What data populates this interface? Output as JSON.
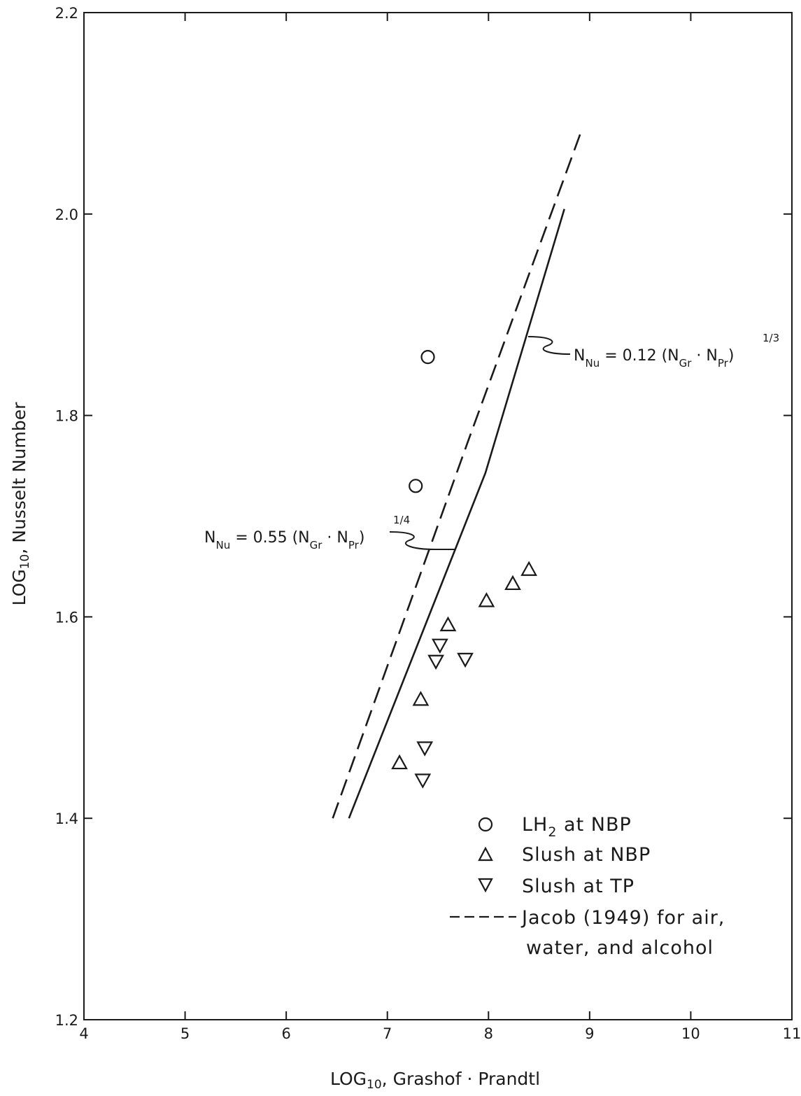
{
  "chart_data": {
    "type": "scatter",
    "xlabel": "LOG",
    "xlabel_sub": "10",
    "xlabel_rest": ", Grashof · Prandtl",
    "ylabel": "LOG",
    "ylabel_sub": "10",
    "ylabel_rest": ", Nusselt Number",
    "xlim": [
      4,
      11
    ],
    "ylim": [
      1.2,
      2.2
    ],
    "x_ticks": [
      "4",
      "5",
      "6",
      "7",
      "8",
      "9",
      "10",
      "11"
    ],
    "y_ticks": [
      "1.2",
      "1.4",
      "1.6",
      "1.8",
      "2.0",
      "2.2"
    ],
    "grid": false,
    "legend_position": "bottom-right",
    "series": [
      {
        "name": "LH₂ at NBP",
        "marker": "circle",
        "x": [
          7.28,
          7.4
        ],
        "y": [
          1.73,
          1.858
        ]
      },
      {
        "name": "Slush at NBP",
        "marker": "triangle-up",
        "x": [
          7.12,
          7.33,
          7.6,
          7.98,
          8.24,
          8.4
        ],
        "y": [
          1.455,
          1.518,
          1.592,
          1.616,
          1.633,
          1.647
        ]
      },
      {
        "name": "Slush at TP",
        "marker": "triangle-down",
        "x": [
          7.35,
          7.37,
          7.48,
          7.52,
          7.77
        ],
        "y": [
          1.438,
          1.47,
          1.556,
          1.572,
          1.558
        ]
      }
    ],
    "lines": [
      {
        "name": "Jacob (1949) for air, water, and alcohol",
        "style": "dashed",
        "x": [
          6.46,
          7.8,
          8.92
        ],
        "y": [
          1.4,
          1.775,
          2.083
        ]
      },
      {
        "name": "solid correlation",
        "style": "solid",
        "x": [
          6.62,
          7.97,
          8.75
        ],
        "y": [
          1.4,
          1.743,
          2.005
        ]
      }
    ],
    "legend": [
      {
        "marker": "circle",
        "text": "LH",
        "sub": "2",
        "text_after": " at NBP"
      },
      {
        "marker": "triangle-up",
        "text": "Slush at NBP"
      },
      {
        "marker": "triangle-down",
        "text": "Slush at TP"
      },
      {
        "marker": "dashed-line",
        "text": "Jacob (1949) for air,",
        "text2": "water, and alcohol"
      }
    ],
    "annotations": [
      {
        "id": "quarter",
        "text": "N",
        "sub1": "Nu",
        "mid": " = 0.55 (N",
        "sub2": "Gr",
        "dot": " · N",
        "sub3": "Pr",
        "close": ")",
        "exp": "1/4",
        "target_x": 7.7,
        "target_y": 1.665
      },
      {
        "id": "third",
        "text": "N",
        "sub1": "Nu",
        "mid": " = 0.12 (N",
        "sub2": "Gr",
        "dot": " · N",
        "sub3": "Pr",
        "close": ")",
        "exp": "1/3",
        "target_x": 8.38,
        "target_y": 1.875
      }
    ]
  }
}
